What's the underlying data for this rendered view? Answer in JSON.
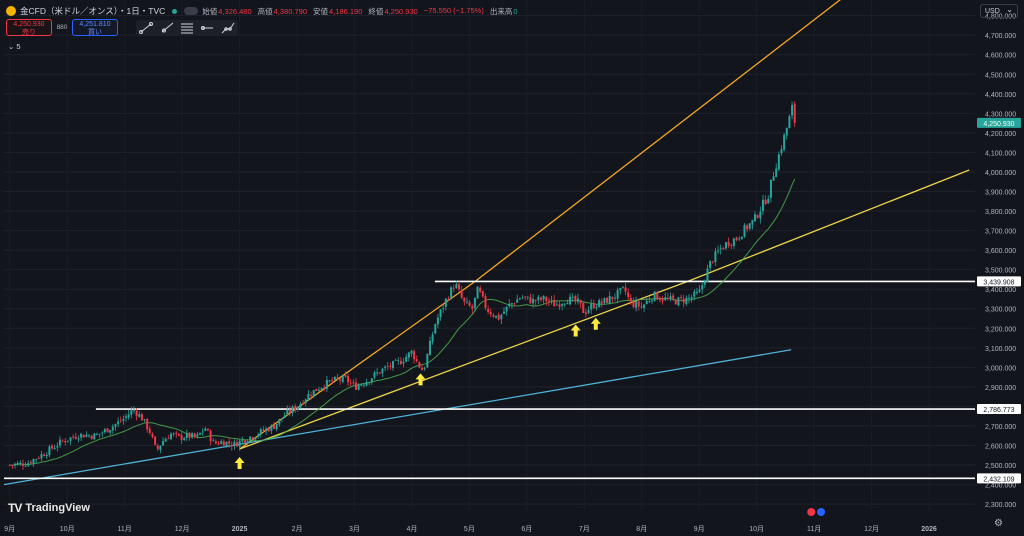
{
  "header": {
    "title": "金CFD（米ドル／オンス）・1日・TVC",
    "ohlc": [
      {
        "label": "始値",
        "value": "4,326.480"
      },
      {
        "label": "高値",
        "value": "4,380.790"
      },
      {
        "label": "安値",
        "value": "4,186.190"
      },
      {
        "label": "終値",
        "value": "4,250.930"
      }
    ],
    "change": "−75.550 (−1.75%)",
    "volume_label": "出来高",
    "volume_value": "0",
    "sell_price": "4,250.930",
    "sell_label": "売り",
    "spread": "880",
    "buy_price": "4,251.810",
    "buy_label": "買い",
    "collapsed_count": "5"
  },
  "currency": "USD",
  "brand": "TradingView",
  "colors": {
    "background": "#13151d",
    "up": "#26a69a",
    "down": "#f23645",
    "ma": "#4caf50",
    "orange_trend": "#f5a623",
    "yellow_trend": "#e8d24a",
    "blue_trend": "#4fb3d9",
    "horizontal": "#ffffff"
  },
  "chart_data": {
    "type": "candlestick",
    "y_ticks": [
      2300,
      2400,
      2500,
      2600,
      2700,
      2800,
      2900,
      3000,
      3100,
      3200,
      3300,
      3400,
      3500,
      3600,
      3700,
      3800,
      3900,
      4000,
      4100,
      4200,
      4300,
      4400,
      4500,
      4600,
      4700,
      4800
    ],
    "y_tick_labels": [
      "2,300.000",
      "2,400.000",
      "2,500.000",
      "2,600.000",
      "2,700.000",
      "2,800.000",
      "2,900.000",
      "3,000.000",
      "3,100.000",
      "3,200.000",
      "3,300.000",
      "3,400.000",
      "3,500.000",
      "3,600.000",
      "3,700.000",
      "3,800.000",
      "3,900.000",
      "4,000.000",
      "4,100.000",
      "4,200.000",
      "4,300.000",
      "4,400.000",
      "4,500.000",
      "4,600.000",
      "4,700.000",
      "4,800.000"
    ],
    "ylim": [
      2270,
      4880
    ],
    "x_labels": [
      "9月",
      "10月",
      "11月",
      "12月",
      "2025",
      "2月",
      "3月",
      "4月",
      "5月",
      "6月",
      "7月",
      "8月",
      "9月",
      "10月",
      "11月",
      "12月",
      "2026"
    ],
    "x_label_months": [
      0,
      1,
      2,
      3,
      4,
      5,
      6,
      7,
      8,
      9,
      10,
      11,
      12,
      13,
      14,
      15,
      16
    ],
    "xlim_months": [
      -0.1,
      16.8
    ],
    "horizontal_levels": [
      {
        "value": 3439.908,
        "label": "3,439.908",
        "from_month": 7.4
      },
      {
        "value": 2786.773,
        "label": "2,786.773",
        "from_month": 1.5
      },
      {
        "value": 2432.109,
        "label": "2,432.109",
        "from_month": -0.1
      }
    ],
    "trend_lines": [
      {
        "name": "orange",
        "points": [
          [
            4.0,
            2582
          ],
          [
            8.1,
            3440
          ],
          [
            14.8,
            4960
          ]
        ]
      },
      {
        "name": "yellow",
        "points": [
          [
            4.0,
            2582
          ],
          [
            11.8,
            3440
          ],
          [
            16.7,
            4010
          ]
        ]
      },
      {
        "name": "blue",
        "points": [
          [
            -0.1,
            2400
          ],
          [
            13.6,
            3090
          ]
        ]
      }
    ],
    "arrows": [
      {
        "month": 4.0,
        "value": 2582
      },
      {
        "month": 7.15,
        "value": 3010
      },
      {
        "month": 9.85,
        "value": 3260
      },
      {
        "month": 10.2,
        "value": 3295
      }
    ],
    "price_path": [
      [
        0.0,
        2500
      ],
      [
        0.3,
        2510
      ],
      [
        0.6,
        2560
      ],
      [
        0.9,
        2620
      ],
      [
        1.2,
        2655
      ],
      [
        1.5,
        2650
      ],
      [
        1.8,
        2700
      ],
      [
        2.0,
        2740
      ],
      [
        2.15,
        2785
      ],
      [
        2.3,
        2740
      ],
      [
        2.45,
        2665
      ],
      [
        2.55,
        2570
      ],
      [
        2.65,
        2620
      ],
      [
        2.8,
        2660
      ],
      [
        2.95,
        2640
      ],
      [
        3.1,
        2650
      ],
      [
        3.25,
        2640
      ],
      [
        3.4,
        2690
      ],
      [
        3.55,
        2610
      ],
      [
        3.7,
        2620
      ],
      [
        3.9,
        2605
      ],
      [
        4.0,
        2620
      ],
      [
        4.3,
        2660
      ],
      [
        4.6,
        2700
      ],
      [
        4.8,
        2760
      ],
      [
        5.0,
        2800
      ],
      [
        5.2,
        2860
      ],
      [
        5.4,
        2900
      ],
      [
        5.6,
        2930
      ],
      [
        5.85,
        2940
      ],
      [
        6.0,
        2900
      ],
      [
        6.2,
        2930
      ],
      [
        6.5,
        2990
      ],
      [
        6.8,
        3030
      ],
      [
        7.0,
        3080
      ],
      [
        7.1,
        3020
      ],
      [
        7.2,
        2980
      ],
      [
        7.3,
        3100
      ],
      [
        7.4,
        3220
      ],
      [
        7.6,
        3350
      ],
      [
        7.75,
        3430
      ],
      [
        7.9,
        3330
      ],
      [
        8.05,
        3300
      ],
      [
        8.15,
        3400
      ],
      [
        8.3,
        3300
      ],
      [
        8.5,
        3250
      ],
      [
        8.7,
        3320
      ],
      [
        8.9,
        3360
      ],
      [
        9.1,
        3340
      ],
      [
        9.3,
        3350
      ],
      [
        9.5,
        3320
      ],
      [
        9.7,
        3350
      ],
      [
        9.9,
        3330
      ],
      [
        10.0,
        3280
      ],
      [
        10.15,
        3320
      ],
      [
        10.3,
        3330
      ],
      [
        10.5,
        3360
      ],
      [
        10.7,
        3400
      ],
      [
        10.8,
        3330
      ],
      [
        11.0,
        3310
      ],
      [
        11.2,
        3370
      ],
      [
        11.4,
        3350
      ],
      [
        11.6,
        3340
      ],
      [
        11.8,
        3350
      ],
      [
        12.0,
        3380
      ],
      [
        12.1,
        3460
      ],
      [
        12.2,
        3540
      ],
      [
        12.35,
        3600
      ],
      [
        12.5,
        3640
      ],
      [
        12.65,
        3660
      ],
      [
        12.8,
        3710
      ],
      [
        12.95,
        3750
      ],
      [
        13.1,
        3830
      ],
      [
        13.2,
        3880
      ],
      [
        13.3,
        4000
      ],
      [
        13.4,
        4100
      ],
      [
        13.5,
        4200
      ],
      [
        13.62,
        4330
      ],
      [
        13.68,
        4251
      ]
    ]
  }
}
